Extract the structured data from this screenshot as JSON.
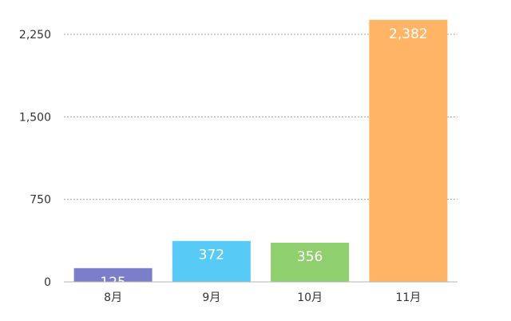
{
  "chart_data": {
    "type": "bar",
    "title": "",
    "xlabel": "",
    "ylabel": "",
    "categories": [
      "8月",
      "9月",
      "10月",
      "11月"
    ],
    "values": [
      125,
      372,
      356,
      2382
    ],
    "value_labels": [
      "125",
      "372",
      "356",
      "2,382"
    ],
    "y_ticks": [
      0,
      750,
      1500,
      2250
    ],
    "y_tick_labels": [
      "0",
      "750",
      "1,500",
      "2,250"
    ],
    "ylim": [
      0,
      2250
    ],
    "grid": true,
    "legend": "none",
    "colors": [
      "#7b7fc9",
      "#57cbf5",
      "#8fcf6e",
      "#ffb466"
    ]
  }
}
